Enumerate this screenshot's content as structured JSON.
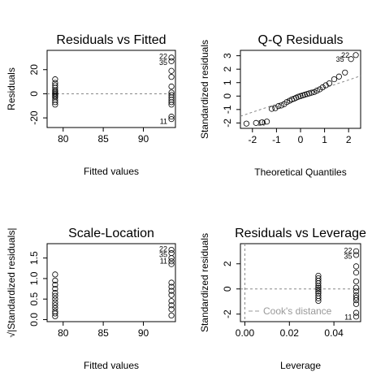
{
  "chart_data": [
    {
      "id": "p1",
      "type": "scatter",
      "title": "Residuals vs Fitted",
      "xlabel": "Fitted values",
      "ylabel": "Residuals",
      "xlim": [
        78,
        94
      ],
      "ylim": [
        -28,
        36
      ],
      "xticks": [
        80,
        85,
        90
      ],
      "yticks": [
        -20,
        0,
        20
      ],
      "ref_lines": [
        {
          "kind": "h",
          "value": 0,
          "style": "dotted",
          "color": "#888888"
        }
      ],
      "points": [
        {
          "x": 79,
          "y": 12
        },
        {
          "x": 79,
          "y": 9
        },
        {
          "x": 79,
          "y": 7
        },
        {
          "x": 79,
          "y": 5
        },
        {
          "x": 79,
          "y": 3
        },
        {
          "x": 79,
          "y": 2
        },
        {
          "x": 79,
          "y": 1
        },
        {
          "x": 79,
          "y": 0
        },
        {
          "x": 79,
          "y": -1
        },
        {
          "x": 79,
          "y": -2
        },
        {
          "x": 79,
          "y": -3
        },
        {
          "x": 79,
          "y": -5
        },
        {
          "x": 79,
          "y": -7
        },
        {
          "x": 79,
          "y": -9
        },
        {
          "x": 93.5,
          "y": 30
        },
        {
          "x": 93.5,
          "y": 27
        },
        {
          "x": 93.5,
          "y": 19
        },
        {
          "x": 93.5,
          "y": 14
        },
        {
          "x": 93.5,
          "y": 6
        },
        {
          "x": 93.5,
          "y": 1
        },
        {
          "x": 93.5,
          "y": -1
        },
        {
          "x": 93.5,
          "y": -3
        },
        {
          "x": 93.5,
          "y": -5
        },
        {
          "x": 93.5,
          "y": -7
        },
        {
          "x": 93.5,
          "y": -9
        },
        {
          "x": 93.5,
          "y": -19
        },
        {
          "x": 93.5,
          "y": -21
        }
      ],
      "labels": [
        {
          "text": "22",
          "x": 93.5,
          "y": 31,
          "anchor": "end"
        },
        {
          "text": "35",
          "x": 93.5,
          "y": 26,
          "anchor": "end"
        },
        {
          "text": "11",
          "x": 93.5,
          "y": -23,
          "anchor": "end"
        }
      ]
    },
    {
      "id": "p2",
      "type": "scatter",
      "title": "Q-Q Residuals",
      "xlabel": "Theoretical Quantiles",
      "ylabel": "Standardized residuals",
      "xlim": [
        -2.5,
        2.5
      ],
      "ylim": [
        -2.4,
        3.4
      ],
      "xticks": [
        -2,
        -1,
        0,
        1,
        2
      ],
      "yticks": [
        -2,
        -1,
        0,
        1,
        2,
        3
      ],
      "ref_lines": [
        {
          "kind": "seg",
          "x1": -2.5,
          "y1": -1.5,
          "x2": 2.5,
          "y2": 1.5,
          "style": "dotted",
          "color": "#888888"
        }
      ],
      "points": [
        {
          "x": -2.25,
          "y": -2.05
        },
        {
          "x": -1.85,
          "y": -2.0
        },
        {
          "x": -1.6,
          "y": -1.95
        },
        {
          "x": -1.4,
          "y": -1.9
        },
        {
          "x": -1.2,
          "y": -0.95
        },
        {
          "x": -1.05,
          "y": -0.9
        },
        {
          "x": -0.92,
          "y": -0.75
        },
        {
          "x": -0.8,
          "y": -0.7
        },
        {
          "x": -0.68,
          "y": -0.6
        },
        {
          "x": -0.57,
          "y": -0.45
        },
        {
          "x": -0.46,
          "y": -0.35
        },
        {
          "x": -0.36,
          "y": -0.25
        },
        {
          "x": -0.27,
          "y": -0.2
        },
        {
          "x": -0.18,
          "y": -0.12
        },
        {
          "x": -0.09,
          "y": -0.05
        },
        {
          "x": 0.0,
          "y": 0.0
        },
        {
          "x": 0.09,
          "y": 0.05
        },
        {
          "x": 0.18,
          "y": 0.1
        },
        {
          "x": 0.27,
          "y": 0.15
        },
        {
          "x": 0.36,
          "y": 0.2
        },
        {
          "x": 0.46,
          "y": 0.25
        },
        {
          "x": 0.57,
          "y": 0.3
        },
        {
          "x": 0.68,
          "y": 0.4
        },
        {
          "x": 0.8,
          "y": 0.5
        },
        {
          "x": 0.92,
          "y": 0.65
        },
        {
          "x": 1.05,
          "y": 0.8
        },
        {
          "x": 1.2,
          "y": 0.95
        },
        {
          "x": 1.4,
          "y": 1.25
        },
        {
          "x": 1.6,
          "y": 1.45
        },
        {
          "x": 1.85,
          "y": 1.75
        },
        {
          "x": 2.1,
          "y": 2.75
        },
        {
          "x": 2.3,
          "y": 3.05
        }
      ],
      "labels": [
        {
          "text": "10",
          "x": -1.95,
          "y": -2.0,
          "anchor": "start"
        },
        {
          "text": "35",
          "x": 1.98,
          "y": 2.75,
          "anchor": "end"
        },
        {
          "text": "22",
          "x": 2.2,
          "y": 3.05,
          "anchor": "end"
        }
      ]
    },
    {
      "id": "p3",
      "type": "scatter",
      "title": "Scale-Location",
      "xlabel": "Fitted values",
      "ylabel": "√|Standardized residuals|",
      "xlim": [
        78,
        94
      ],
      "ylim": [
        -0.05,
        1.85
      ],
      "xticks": [
        80,
        85,
        90
      ],
      "yticks": [
        0.0,
        0.5,
        1.0,
        1.5
      ],
      "tick_labels_y": [
        "0.0",
        "0.5",
        "1.0",
        "1.5"
      ],
      "ref_lines": [],
      "points": [
        {
          "x": 79,
          "y": 1.1
        },
        {
          "x": 79,
          "y": 0.95
        },
        {
          "x": 79,
          "y": 0.85
        },
        {
          "x": 79,
          "y": 0.75
        },
        {
          "x": 79,
          "y": 0.65
        },
        {
          "x": 79,
          "y": 0.58
        },
        {
          "x": 79,
          "y": 0.5
        },
        {
          "x": 79,
          "y": 0.42
        },
        {
          "x": 79,
          "y": 0.35
        },
        {
          "x": 79,
          "y": 0.28
        },
        {
          "x": 79,
          "y": 0.2
        },
        {
          "x": 79,
          "y": 0.15
        },
        {
          "x": 79,
          "y": 0.08
        },
        {
          "x": 93.5,
          "y": 1.7
        },
        {
          "x": 93.5,
          "y": 1.62
        },
        {
          "x": 93.5,
          "y": 1.5
        },
        {
          "x": 93.5,
          "y": 1.42
        },
        {
          "x": 93.5,
          "y": 1.35
        },
        {
          "x": 93.5,
          "y": 0.9
        },
        {
          "x": 93.5,
          "y": 0.8
        },
        {
          "x": 93.5,
          "y": 0.7
        },
        {
          "x": 93.5,
          "y": 0.6
        },
        {
          "x": 93.5,
          "y": 0.45
        },
        {
          "x": 93.5,
          "y": 0.35
        },
        {
          "x": 93.5,
          "y": 0.25
        },
        {
          "x": 93.5,
          "y": 0.1
        }
      ],
      "labels": [
        {
          "text": "22",
          "x": 93.5,
          "y": 1.72,
          "anchor": "end"
        },
        {
          "text": "35",
          "x": 93.5,
          "y": 1.58,
          "anchor": "end"
        },
        {
          "text": "11",
          "x": 93.5,
          "y": 1.42,
          "anchor": "end"
        }
      ]
    },
    {
      "id": "p4",
      "type": "scatter",
      "title": "Residuals vs Leverage",
      "xlabel": "Leverage",
      "ylabel": "Standardized residuals",
      "xlim": [
        -0.002,
        0.052
      ],
      "ylim": [
        -2.6,
        3.6
      ],
      "xticks": [
        0.0,
        0.02,
        0.04
      ],
      "tick_labels_x": [
        "0.00",
        "0.02",
        "0.04"
      ],
      "yticks": [
        -2,
        0,
        2
      ],
      "ref_lines": [
        {
          "kind": "h",
          "value": 0,
          "style": "dotted",
          "color": "#888888"
        },
        {
          "kind": "v",
          "value": 0,
          "style": "dotted",
          "color": "#888888"
        }
      ],
      "legend": {
        "text": "Cook's distance",
        "placement": "bottom-left",
        "style": "dashed",
        "color": "#999999"
      },
      "points": [
        {
          "x": 0.033,
          "y": 1.05
        },
        {
          "x": 0.033,
          "y": 0.85
        },
        {
          "x": 0.033,
          "y": 0.65
        },
        {
          "x": 0.033,
          "y": 0.45
        },
        {
          "x": 0.033,
          "y": 0.25
        },
        {
          "x": 0.033,
          "y": 0.1
        },
        {
          "x": 0.033,
          "y": -0.05
        },
        {
          "x": 0.033,
          "y": -0.2
        },
        {
          "x": 0.033,
          "y": -0.35
        },
        {
          "x": 0.033,
          "y": -0.55
        },
        {
          "x": 0.033,
          "y": -0.75
        },
        {
          "x": 0.033,
          "y": -0.95
        },
        {
          "x": 0.05,
          "y": 3.0
        },
        {
          "x": 0.05,
          "y": 2.7
        },
        {
          "x": 0.05,
          "y": 1.8
        },
        {
          "x": 0.05,
          "y": 1.3
        },
        {
          "x": 0.05,
          "y": 0.6
        },
        {
          "x": 0.05,
          "y": 0.1
        },
        {
          "x": 0.05,
          "y": -0.2
        },
        {
          "x": 0.05,
          "y": -0.5
        },
        {
          "x": 0.05,
          "y": -0.7
        },
        {
          "x": 0.05,
          "y": -0.9
        },
        {
          "x": 0.05,
          "y": -1.2
        },
        {
          "x": 0.05,
          "y": -1.9
        },
        {
          "x": 0.05,
          "y": -2.2
        }
      ],
      "labels": [
        {
          "text": "22",
          "x": 0.05,
          "y": 3.05,
          "anchor": "end"
        },
        {
          "text": "35",
          "x": 0.05,
          "y": 2.6,
          "anchor": "end"
        },
        {
          "text": "11",
          "x": 0.05,
          "y": -2.25,
          "anchor": "end"
        }
      ]
    }
  ]
}
